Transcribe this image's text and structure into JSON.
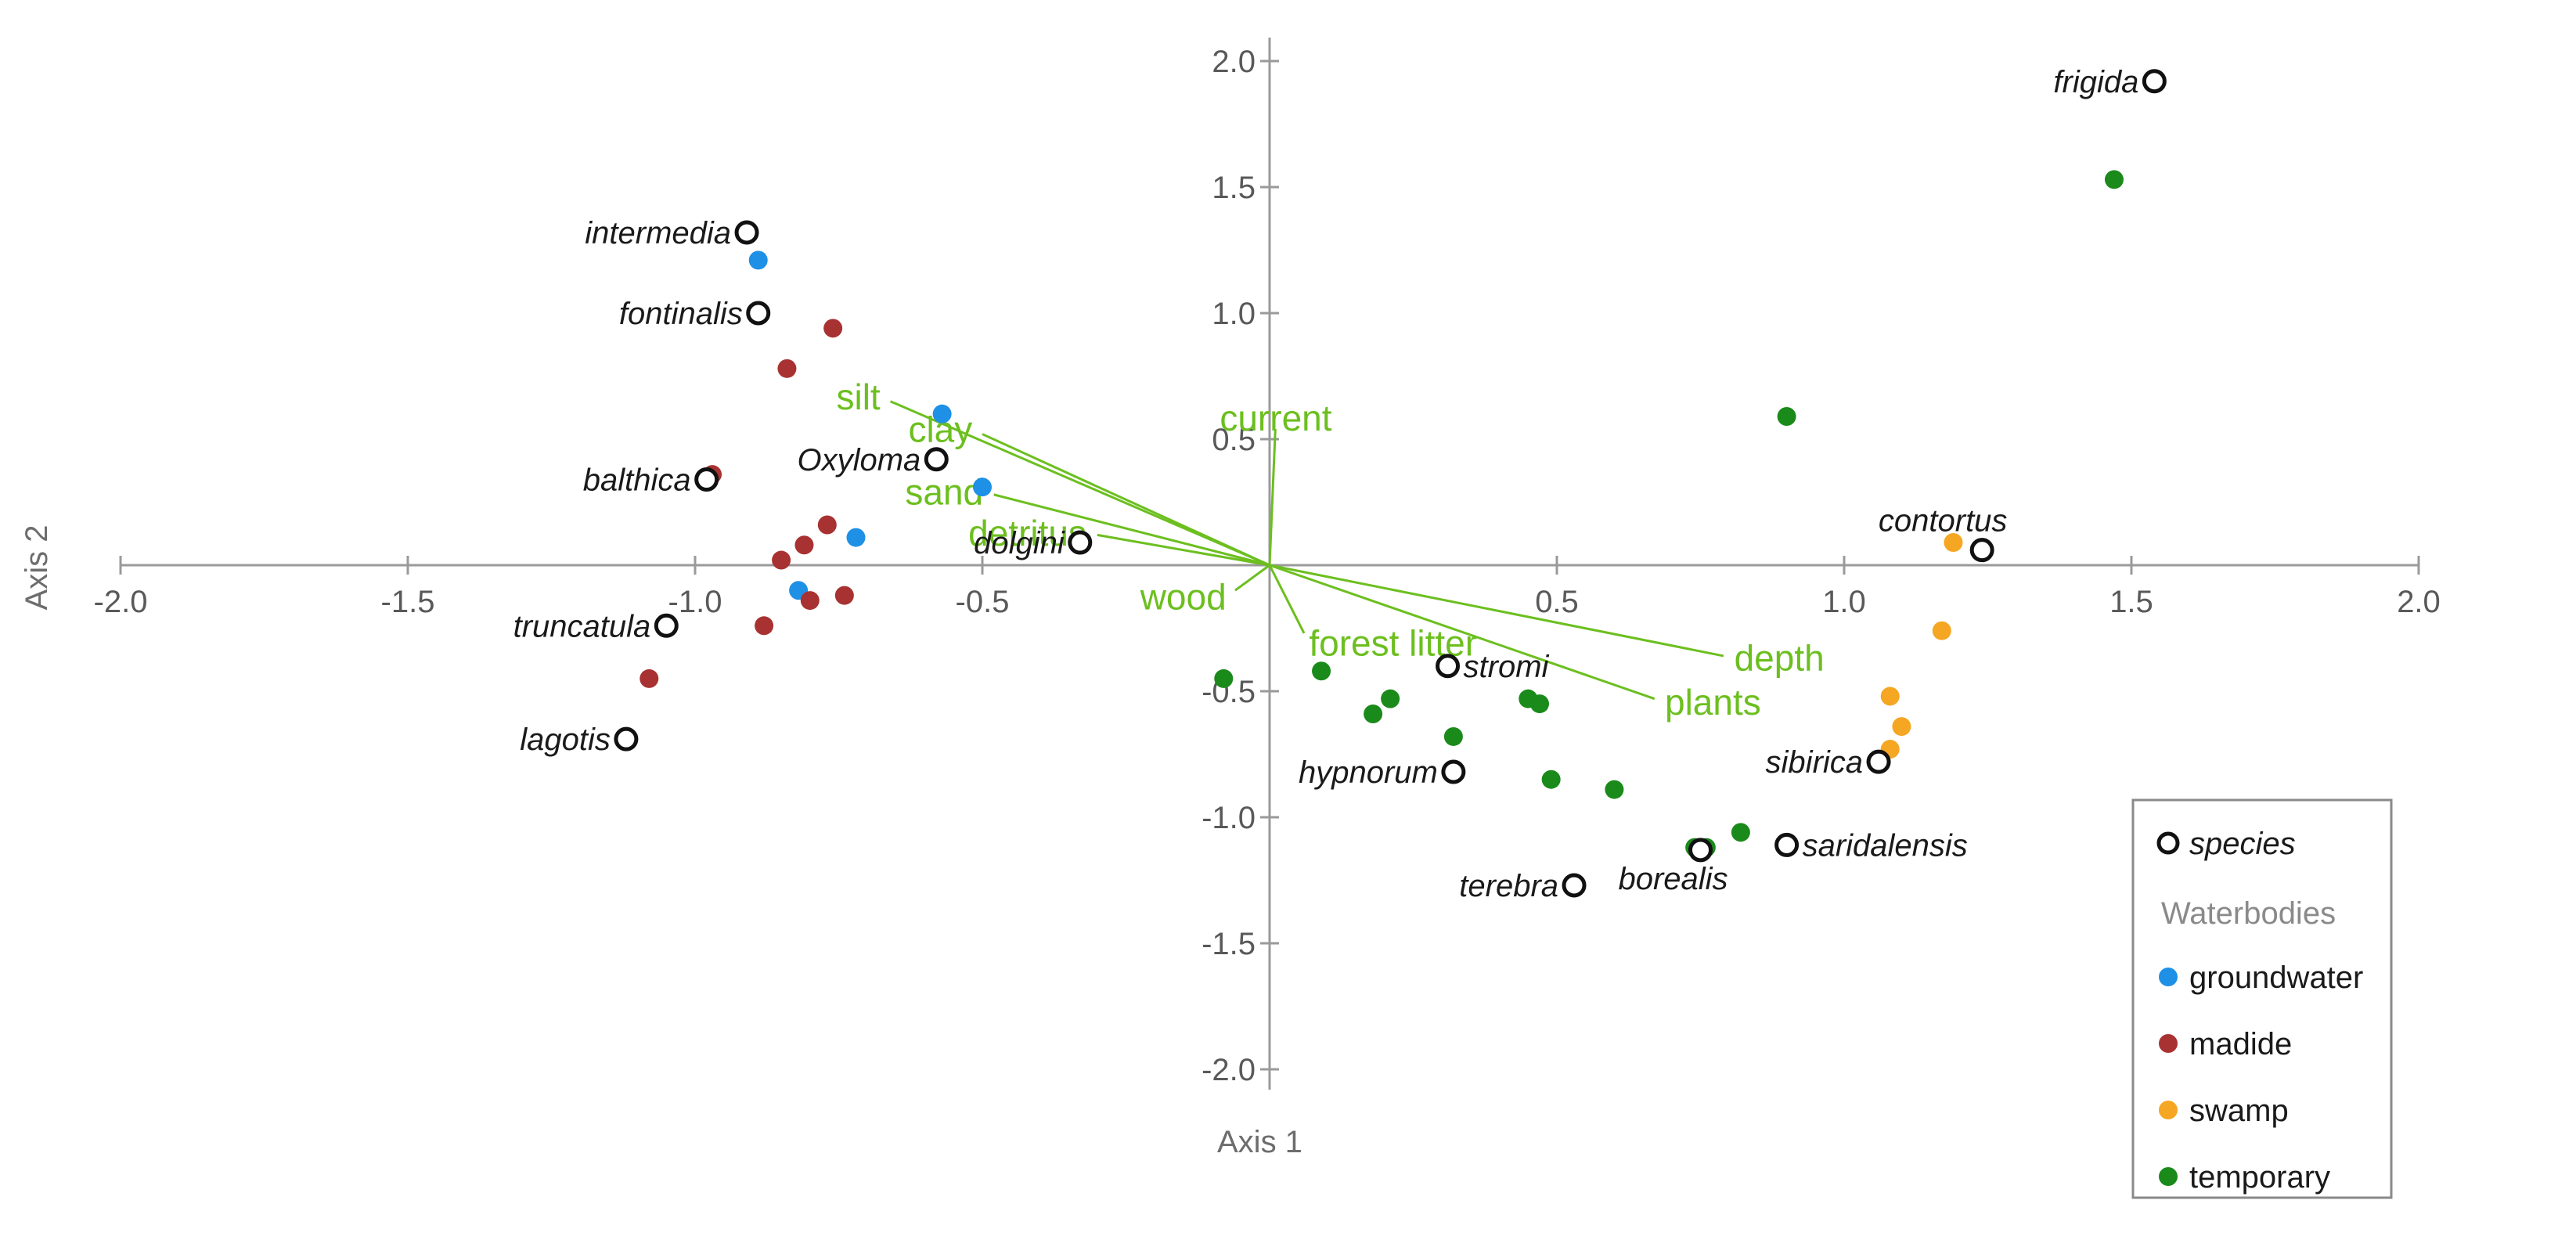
{
  "chart_data": {
    "type": "scatter",
    "xlabel": "Axis 1",
    "ylabel": "Axis 2",
    "xlim": [
      -2.0,
      2.0
    ],
    "ylim": [
      -2.0,
      2.0
    ],
    "x_ticks": [
      -2.0,
      -1.5,
      -1.0,
      -0.5,
      0.5,
      1.0,
      1.5,
      2.0
    ],
    "y_ticks": [
      2.0,
      1.5,
      1.0,
      0.5,
      -0.5,
      -1.0,
      -1.5,
      -2.0
    ],
    "x_tick_labels": [
      "-2.0",
      "-1.5",
      "-1.0",
      "-0.5",
      "0.5",
      "1.0",
      "1.5",
      "2.0"
    ],
    "y_tick_labels": [
      "2.0",
      "1.5",
      "1.0",
      "0.5",
      "-0.5",
      "-1.0",
      "-1.5",
      "-2.0"
    ],
    "legend": {
      "position": "bottom-right",
      "species_label": "species",
      "group_title": "Waterbodies",
      "entries": [
        {
          "name": "groundwater",
          "color": "#1e90e6"
        },
        {
          "name": "madide",
          "color": "#a83232"
        },
        {
          "name": "swamp",
          "color": "#f5a623"
        },
        {
          "name": "temporary",
          "color": "#1a8a1a"
        }
      ]
    },
    "species": [
      {
        "label": "intermedia",
        "x": -0.91,
        "y": 1.32,
        "side": "left"
      },
      {
        "label": "fontinalis",
        "x": -0.89,
        "y": 1.0,
        "side": "left"
      },
      {
        "label": "balthica",
        "x": -0.98,
        "y": 0.34,
        "side": "left"
      },
      {
        "label": "Oxyloma",
        "x": -0.58,
        "y": 0.42,
        "side": "left"
      },
      {
        "label": "dolgini",
        "x": -0.33,
        "y": 0.09,
        "side": "left"
      },
      {
        "label": "truncatula",
        "x": -1.05,
        "y": -0.24,
        "side": "left"
      },
      {
        "label": "lagotis",
        "x": -1.12,
        "y": -0.69,
        "side": "left"
      },
      {
        "label": "stromi",
        "x": 0.31,
        "y": -0.4,
        "side": "right"
      },
      {
        "label": "hypnorum",
        "x": 0.32,
        "y": -0.82,
        "side": "left"
      },
      {
        "label": "terebra",
        "x": 0.53,
        "y": -1.27,
        "side": "left"
      },
      {
        "label": "borealis",
        "x": 0.75,
        "y": -1.13,
        "side": "below"
      },
      {
        "label": "saridalensis",
        "x": 0.9,
        "y": -1.11,
        "side": "right"
      },
      {
        "label": "sibirica",
        "x": 1.06,
        "y": -0.78,
        "side": "left"
      },
      {
        "label": "contortus",
        "x": 1.24,
        "y": 0.06,
        "side": "above"
      },
      {
        "label": "frigida",
        "x": 1.54,
        "y": 1.92,
        "side": "left"
      }
    ],
    "sites": {
      "groundwater": [
        {
          "x": -0.89,
          "y": 1.21
        },
        {
          "x": -0.57,
          "y": 0.6
        },
        {
          "x": -0.5,
          "y": 0.31
        },
        {
          "x": -0.72,
          "y": 0.11
        },
        {
          "x": -0.82,
          "y": -0.1
        }
      ],
      "madide": [
        {
          "x": -0.89,
          "y": 1.0
        },
        {
          "x": -0.76,
          "y": 0.94
        },
        {
          "x": -0.84,
          "y": 0.78
        },
        {
          "x": -0.97,
          "y": 0.36
        },
        {
          "x": -0.77,
          "y": 0.16
        },
        {
          "x": -0.81,
          "y": 0.08
        },
        {
          "x": -0.85,
          "y": 0.02
        },
        {
          "x": -0.8,
          "y": -0.14
        },
        {
          "x": -0.74,
          "y": -0.12
        },
        {
          "x": -0.88,
          "y": -0.24
        },
        {
          "x": -1.08,
          "y": -0.45
        }
      ],
      "swamp": [
        {
          "x": 1.19,
          "y": 0.09
        },
        {
          "x": 1.17,
          "y": -0.26
        },
        {
          "x": 1.08,
          "y": -0.52
        },
        {
          "x": 1.1,
          "y": -0.64
        },
        {
          "x": 1.08,
          "y": -0.73
        }
      ],
      "temporary": [
        {
          "x": 1.47,
          "y": 1.53
        },
        {
          "x": 0.9,
          "y": 0.59
        },
        {
          "x": -0.08,
          "y": -0.45
        },
        {
          "x": 0.09,
          "y": -0.42
        },
        {
          "x": 0.18,
          "y": -0.59
        },
        {
          "x": 0.21,
          "y": -0.53
        },
        {
          "x": 0.32,
          "y": -0.68
        },
        {
          "x": 0.45,
          "y": -0.53
        },
        {
          "x": 0.47,
          "y": -0.55
        },
        {
          "x": 0.49,
          "y": -0.85
        },
        {
          "x": 0.6,
          "y": -0.89
        },
        {
          "x": 0.74,
          "y": -1.12
        },
        {
          "x": 0.76,
          "y": -1.12
        },
        {
          "x": 0.82,
          "y": -1.06
        }
      ]
    },
    "environmental_vectors": [
      {
        "label": "silt",
        "x": -0.66,
        "y": 0.65
      },
      {
        "label": "clay",
        "x": -0.5,
        "y": 0.52
      },
      {
        "label": "sand",
        "x": -0.48,
        "y": 0.28
      },
      {
        "label": "detritus",
        "x": -0.3,
        "y": 0.12
      },
      {
        "label": "current",
        "x": 0.01,
        "y": 0.54
      },
      {
        "label": "wood",
        "x": -0.06,
        "y": -0.1
      },
      {
        "label": "forest litter",
        "x": 0.06,
        "y": -0.27
      },
      {
        "label": "plants",
        "x": 0.67,
        "y": -0.53
      },
      {
        "label": "depth",
        "x": 0.79,
        "y": -0.36
      }
    ]
  }
}
